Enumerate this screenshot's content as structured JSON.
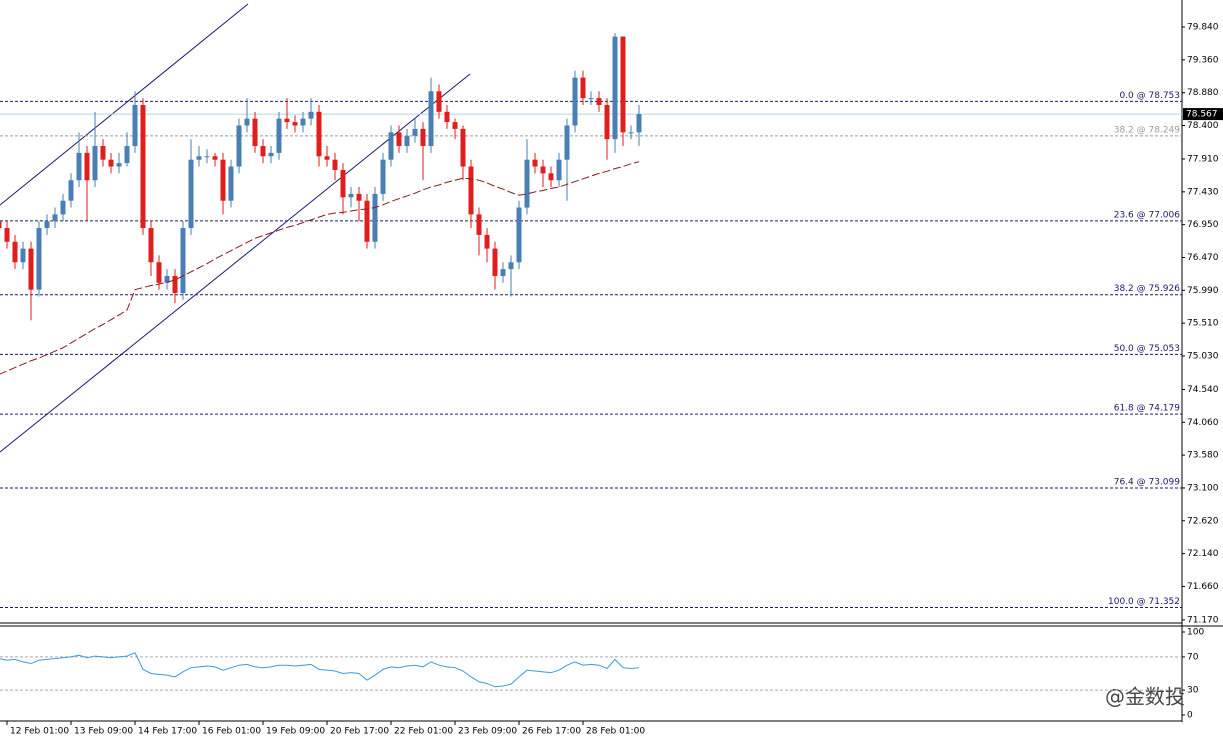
{
  "chart_data": {
    "type": "candlestick",
    "categories": [
      null,
      "12 Feb 01:00",
      null,
      null,
      null,
      null,
      null,
      null,
      null,
      "13 Feb 09:00",
      null,
      null,
      null,
      null,
      null,
      null,
      null,
      "14 Feb 17:00",
      null,
      null,
      null,
      null,
      null,
      null,
      null,
      "16 Feb 01:00",
      null,
      null,
      null,
      null,
      null,
      null,
      null,
      "19 Feb 09:00",
      null,
      null,
      null,
      null,
      null,
      null,
      null,
      "20 Feb 17:00",
      null,
      null,
      null,
      null,
      null,
      null,
      null,
      "22 Feb 01:00",
      null,
      null,
      null,
      null,
      null,
      null,
      null,
      "23 Feb 09:00",
      null,
      null,
      null,
      null,
      null,
      null,
      null,
      "26 Feb 17:00",
      null,
      null,
      null,
      null,
      null,
      null,
      null,
      "28 Feb 01:00",
      null,
      null,
      null,
      null,
      null,
      null,
      null
    ],
    "open": [
      77.0,
      76.9,
      76.7,
      76.4,
      76.6,
      76.0,
      76.9,
      77.0,
      77.1,
      77.3,
      77.6,
      78.0,
      77.6,
      78.1,
      77.9,
      77.8,
      77.85,
      78.1,
      78.7,
      76.9,
      76.4,
      76.1,
      76.2,
      75.95,
      76.9,
      77.9,
      77.95,
      77.95,
      77.9,
      77.3,
      77.8,
      78.4,
      78.5,
      78.1,
      77.95,
      78.0,
      78.5,
      78.45,
      78.4,
      78.5,
      78.6,
      77.95,
      77.9,
      77.75,
      77.35,
      77.4,
      77.3,
      76.7,
      77.4,
      77.9,
      78.3,
      78.1,
      78.25,
      78.35,
      78.1,
      78.9,
      78.6,
      78.45,
      78.35,
      77.8,
      77.1,
      76.8,
      76.6,
      76.2,
      76.3,
      76.4,
      77.2,
      77.9,
      77.8,
      77.7,
      77.6,
      77.9,
      78.4,
      79.1,
      78.8,
      78.8,
      78.7,
      78.2,
      79.7,
      78.3,
      78.3
    ],
    "high": [
      77.1,
      77.0,
      76.8,
      76.7,
      76.7,
      77.0,
      77.1,
      77.2,
      77.4,
      77.7,
      78.3,
      78.1,
      78.6,
      78.2,
      78.0,
      78.0,
      78.3,
      78.9,
      78.8,
      77.0,
      76.5,
      76.3,
      76.3,
      77.0,
      78.2,
      78.1,
      78.05,
      78.0,
      78.0,
      77.9,
      78.5,
      78.8,
      78.6,
      78.2,
      78.1,
      78.6,
      78.8,
      78.55,
      78.6,
      78.8,
      78.7,
      78.1,
      78.0,
      77.85,
      77.5,
      77.5,
      77.4,
      77.5,
      78.0,
      78.4,
      78.4,
      78.35,
      78.5,
      78.45,
      79.1,
      79.0,
      78.7,
      78.5,
      78.4,
      77.9,
      77.2,
      76.9,
      76.7,
      76.4,
      76.5,
      77.3,
      78.2,
      78.0,
      77.9,
      77.8,
      78.0,
      78.5,
      79.2,
      79.2,
      78.9,
      78.9,
      78.8,
      79.75,
      79.7,
      78.4,
      78.7
    ],
    "low": [
      76.8,
      76.6,
      76.3,
      76.3,
      75.55,
      75.9,
      76.8,
      76.9,
      77.0,
      77.2,
      77.5,
      77.0,
      77.5,
      77.8,
      77.7,
      77.7,
      77.8,
      78.0,
      76.8,
      76.2,
      76.0,
      76.0,
      75.8,
      75.85,
      76.8,
      77.8,
      77.85,
      77.8,
      77.1,
      77.2,
      77.7,
      78.3,
      78.0,
      77.85,
      77.85,
      77.9,
      78.35,
      78.3,
      78.3,
      78.4,
      77.8,
      77.8,
      77.6,
      77.1,
      77.2,
      77.0,
      76.6,
      76.6,
      77.3,
      77.8,
      78.0,
      78.0,
      78.15,
      77.6,
      78.0,
      78.5,
      78.35,
      78.2,
      77.6,
      76.9,
      76.5,
      76.4,
      76.0,
      76.1,
      75.9,
      76.3,
      77.1,
      77.7,
      77.5,
      77.5,
      77.5,
      77.3,
      78.3,
      78.7,
      78.7,
      78.6,
      77.9,
      78.0,
      78.1,
      78.2,
      78.1
    ],
    "close": [
      76.9,
      76.7,
      76.4,
      76.6,
      76.0,
      76.9,
      77.0,
      77.1,
      77.3,
      77.6,
      78.0,
      77.6,
      78.1,
      77.9,
      77.8,
      77.85,
      78.1,
      78.7,
      76.9,
      76.4,
      76.1,
      76.2,
      75.95,
      76.9,
      77.9,
      77.95,
      77.95,
      77.9,
      77.3,
      77.8,
      78.4,
      78.5,
      78.1,
      77.95,
      78.0,
      78.5,
      78.45,
      78.4,
      78.5,
      78.6,
      77.95,
      77.9,
      77.75,
      77.35,
      77.4,
      77.3,
      76.7,
      77.4,
      77.9,
      78.3,
      78.1,
      78.25,
      78.35,
      78.1,
      78.9,
      78.6,
      78.45,
      78.35,
      77.8,
      77.1,
      76.8,
      76.6,
      76.2,
      76.3,
      76.4,
      77.2,
      77.9,
      77.8,
      77.7,
      77.6,
      77.9,
      78.4,
      79.1,
      78.8,
      78.8,
      78.7,
      78.2,
      79.7,
      78.3,
      78.3,
      78.567
    ],
    "up_color": "#4a7fb5",
    "down_color": "#e01e1e",
    "ma": {
      "color": "#8b1a1a",
      "values": [
        74.76,
        74.81,
        74.86,
        74.91,
        74.96,
        75.0,
        75.05,
        75.1,
        75.15,
        75.22,
        75.29,
        75.36,
        75.43,
        75.49,
        75.56,
        75.63,
        75.7,
        76.0,
        76.03,
        76.06,
        76.08,
        76.11,
        76.14,
        76.2,
        76.26,
        76.32,
        76.38,
        76.45,
        76.51,
        76.57,
        76.63,
        76.69,
        76.75,
        76.79,
        76.83,
        76.87,
        76.91,
        76.94,
        76.98,
        77.02,
        77.06,
        77.1,
        77.12,
        77.13,
        77.15,
        77.17,
        77.18,
        77.2,
        77.24,
        77.29,
        77.33,
        77.37,
        77.41,
        77.46,
        77.5,
        77.53,
        77.57,
        77.6,
        77.63,
        77.62,
        77.6,
        77.56,
        77.51,
        77.47,
        77.42,
        77.38,
        77.4,
        77.43,
        77.45,
        77.48,
        77.5,
        77.54,
        77.58,
        77.62,
        77.66,
        77.7,
        77.73,
        77.77,
        77.8,
        77.84,
        77.87
      ]
    },
    "ylim": [
      71.14,
      80.235
    ],
    "yticks": [
      {
        "value": 79.84,
        "label": "79.840"
      },
      {
        "value": 79.36,
        "label": "79.360"
      },
      {
        "value": 78.88,
        "label": "78.880"
      },
      {
        "value": 78.4,
        "label": "78.400"
      },
      {
        "value": 77.91,
        "label": "77.910"
      },
      {
        "value": 77.43,
        "label": "77.430"
      },
      {
        "value": 76.95,
        "label": "76.950"
      },
      {
        "value": 76.47,
        "label": "76.470"
      },
      {
        "value": 75.99,
        "label": "75.990"
      },
      {
        "value": 75.51,
        "label": "75.510"
      },
      {
        "value": 75.03,
        "label": "75.030"
      },
      {
        "value": 74.54,
        "label": "74.540"
      },
      {
        "value": 74.06,
        "label": "74.060"
      },
      {
        "value": 73.58,
        "label": "73.580"
      },
      {
        "value": 73.1,
        "label": "73.100"
      },
      {
        "value": 72.62,
        "label": "72.620"
      },
      {
        "value": 72.14,
        "label": "72.140"
      },
      {
        "value": 71.66,
        "label": "71.660"
      },
      {
        "value": 71.17,
        "label": "71.170"
      }
    ],
    "fib_levels": [
      {
        "label": "0.0 @ 78.753",
        "value": 78.753,
        "color": "#1a1a6e"
      },
      {
        "label": "38.2 @ 78.249",
        "value": 78.249,
        "color": "#9a9a9a"
      },
      {
        "label": "23.6 @ 77.006",
        "value": 77.006,
        "color": "#1a1a6e"
      },
      {
        "label": "38.2 @ 75.926",
        "value": 75.926,
        "color": "#1a1a6e"
      },
      {
        "label": "50.0 @ 75.053",
        "value": 75.053,
        "color": "#1a1a6e"
      },
      {
        "label": "61.8 @ 74.179",
        "value": 74.179,
        "color": "#1a1a6e"
      },
      {
        "label": "76.4 @ 73.099",
        "value": 73.099,
        "color": "#1a1a6e"
      },
      {
        "label": "100.0 @ 71.352",
        "value": 71.352,
        "color": "#1a1a6e"
      }
    ],
    "rsi": {
      "color": "#3b9ad9",
      "values": [
        68,
        66,
        67,
        64,
        62,
        66,
        67,
        68,
        69,
        70,
        72,
        69,
        71,
        70,
        69,
        70,
        71,
        75,
        55,
        50,
        49,
        48,
        46,
        52,
        57,
        58,
        59,
        58,
        54,
        57,
        60,
        61,
        58,
        57,
        58,
        60,
        60,
        59,
        60,
        61,
        55,
        54,
        53,
        50,
        51,
        50,
        42,
        48,
        55,
        58,
        57,
        59,
        60,
        58,
        64,
        60,
        58,
        57,
        53,
        46,
        40,
        38,
        34,
        35,
        37,
        46,
        54,
        53,
        52,
        51,
        54,
        60,
        64,
        60,
        61,
        60,
        56,
        67,
        57,
        56,
        57
      ],
      "ylim": [
        0,
        100
      ],
      "yticks": [
        100,
        70,
        30,
        0
      ],
      "levels": [
        70,
        30
      ]
    },
    "watermark": "@金数投"
  }
}
